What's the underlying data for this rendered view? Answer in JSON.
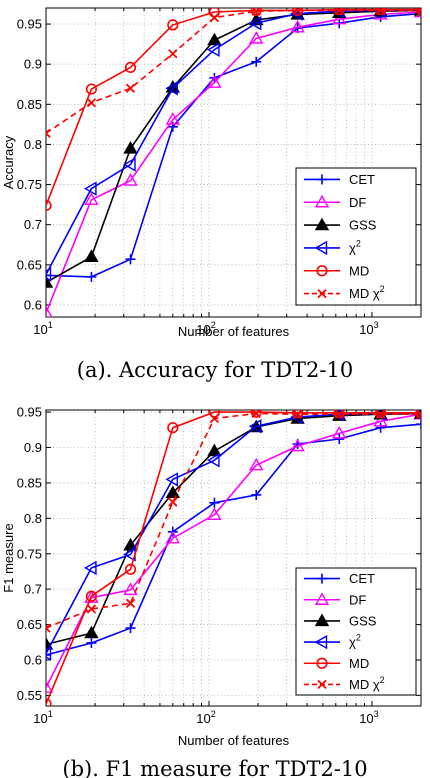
{
  "chart_data": [
    {
      "type": "line",
      "caption": "(a). Accuracy for TDT2-10",
      "xlabel": "Number of features",
      "ylabel": "Accuracy",
      "xscale": "log",
      "xlim": [
        10,
        2000
      ],
      "ylim": [
        0.585,
        0.97
      ],
      "grid": true,
      "legend_position": "lower-right",
      "xticks": [
        {
          "label": "10",
          "exp": "1",
          "value": 10
        },
        {
          "label": "10",
          "exp": "2",
          "value": 100
        },
        {
          "label": "10",
          "exp": "3",
          "value": 1000
        }
      ],
      "yticks": [
        {
          "label": "0.6",
          "value": 0.6
        },
        {
          "label": "0.65",
          "value": 0.65
        },
        {
          "label": "0.7",
          "value": 0.7
        },
        {
          "label": "0.75",
          "value": 0.75
        },
        {
          "label": "0.8",
          "value": 0.8
        },
        {
          "label": "0.85",
          "value": 0.85
        },
        {
          "label": "0.9",
          "value": 0.9
        },
        {
          "label": "0.95",
          "value": 0.95
        }
      ],
      "series": [
        {
          "name": "CET",
          "sup": "",
          "color": "#0000ff",
          "marker": "plus",
          "dash": false,
          "x": [
            10,
            19,
            33,
            60,
            108,
            195,
            350,
            630,
            1130,
            2000
          ],
          "y": [
            0.637,
            0.635,
            0.657,
            0.822,
            0.883,
            0.903,
            0.945,
            0.951,
            0.959,
            0.963
          ]
        },
        {
          "name": "DF",
          "sup": "",
          "color": "#ff00ff",
          "marker": "triangle-up",
          "dash": false,
          "x": [
            10,
            19,
            33,
            60,
            108,
            195,
            350,
            630,
            1130,
            2000
          ],
          "y": [
            0.59,
            0.731,
            0.755,
            0.831,
            0.877,
            0.932,
            0.946,
            0.956,
            0.962,
            0.965
          ]
        },
        {
          "name": "GSS",
          "sup": "",
          "color": "#000000",
          "marker": "triangle-up-filled",
          "dash": false,
          "x": [
            10,
            19,
            33,
            60,
            108,
            195,
            350,
            630,
            1130,
            2000
          ],
          "y": [
            0.628,
            0.66,
            0.795,
            0.871,
            0.93,
            0.955,
            0.962,
            0.964,
            0.966,
            0.967
          ]
        },
        {
          "name": "χ",
          "sup": "2",
          "color": "#0000ff",
          "marker": "triangle-left",
          "dash": false,
          "x": [
            10,
            19,
            33,
            60,
            108,
            195,
            350,
            630,
            1130,
            2000
          ],
          "y": [
            0.638,
            0.745,
            0.775,
            0.87,
            0.918,
            0.951,
            0.963,
            0.966,
            0.967,
            0.968
          ]
        },
        {
          "name": "MD",
          "sup": "",
          "color": "#ff0000",
          "marker": "circle",
          "dash": false,
          "x": [
            10,
            19,
            33,
            60,
            108,
            195,
            350,
            630,
            1130,
            2000
          ],
          "y": [
            0.724,
            0.869,
            0.896,
            0.949,
            0.965,
            0.967,
            0.967,
            0.968,
            0.968,
            0.968
          ]
        },
        {
          "name": "MD χ",
          "sup": "2",
          "color": "#ff0000",
          "marker": "x",
          "dash": true,
          "x": [
            10,
            19,
            33,
            60,
            108,
            195,
            350,
            630,
            1130,
            2000
          ],
          "y": [
            0.814,
            0.852,
            0.87,
            0.913,
            0.958,
            0.966,
            0.967,
            0.967,
            0.967,
            0.967
          ]
        }
      ]
    },
    {
      "type": "line",
      "caption": "(b). F1 measure for TDT2-10",
      "xlabel": "Number of features",
      "ylabel": "F1 measure",
      "xscale": "log",
      "xlim": [
        10,
        2000
      ],
      "ylim": [
        0.535,
        0.953
      ],
      "grid": true,
      "legend_position": "lower-right",
      "xticks": [
        {
          "label": "10",
          "exp": "1",
          "value": 10
        },
        {
          "label": "10",
          "exp": "2",
          "value": 100
        },
        {
          "label": "10",
          "exp": "3",
          "value": 1000
        }
      ],
      "yticks": [
        {
          "label": "0.55",
          "value": 0.55
        },
        {
          "label": "0.6",
          "value": 0.6
        },
        {
          "label": "0.65",
          "value": 0.65
        },
        {
          "label": "0.7",
          "value": 0.7
        },
        {
          "label": "0.75",
          "value": 0.75
        },
        {
          "label": "0.8",
          "value": 0.8
        },
        {
          "label": "0.85",
          "value": 0.85
        },
        {
          "label": "0.9",
          "value": 0.9
        },
        {
          "label": "0.95",
          "value": 0.95
        }
      ],
      "series": [
        {
          "name": "CET",
          "sup": "",
          "color": "#0000ff",
          "marker": "plus",
          "dash": false,
          "x": [
            10,
            19,
            33,
            60,
            108,
            195,
            350,
            630,
            1130,
            2000
          ],
          "y": [
            0.607,
            0.624,
            0.645,
            0.781,
            0.822,
            0.833,
            0.905,
            0.912,
            0.928,
            0.933
          ]
        },
        {
          "name": "DF",
          "sup": "",
          "color": "#ff00ff",
          "marker": "triangle-up",
          "dash": false,
          "x": [
            10,
            19,
            33,
            60,
            108,
            195,
            350,
            630,
            1130,
            2000
          ],
          "y": [
            0.561,
            0.688,
            0.699,
            0.772,
            0.805,
            0.875,
            0.902,
            0.92,
            0.937,
            0.947
          ]
        },
        {
          "name": "GSS",
          "sup": "",
          "color": "#000000",
          "marker": "triangle-up-filled",
          "dash": false,
          "x": [
            10,
            19,
            33,
            60,
            108,
            195,
            350,
            630,
            1130,
            2000
          ],
          "y": [
            0.622,
            0.638,
            0.762,
            0.836,
            0.895,
            0.929,
            0.941,
            0.945,
            0.947,
            0.948
          ]
        },
        {
          "name": "χ",
          "sup": "2",
          "color": "#0000ff",
          "marker": "triangle-left",
          "dash": false,
          "x": [
            10,
            19,
            33,
            60,
            108,
            195,
            350,
            630,
            1130,
            2000
          ],
          "y": [
            0.609,
            0.73,
            0.749,
            0.855,
            0.882,
            0.93,
            0.943,
            0.947,
            0.948,
            0.949
          ]
        },
        {
          "name": "MD",
          "sup": "",
          "color": "#ff0000",
          "marker": "circle",
          "dash": false,
          "x": [
            10,
            19,
            33,
            60,
            108,
            195,
            350,
            630,
            1130,
            2000
          ],
          "y": [
            0.538,
            0.69,
            0.728,
            0.928,
            0.95,
            0.95,
            0.949,
            0.949,
            0.949,
            0.949
          ]
        },
        {
          "name": "MD χ",
          "sup": "2",
          "color": "#ff0000",
          "marker": "x",
          "dash": true,
          "x": [
            10,
            19,
            33,
            60,
            108,
            195,
            350,
            630,
            1130,
            2000
          ],
          "y": [
            0.645,
            0.672,
            0.68,
            0.823,
            0.941,
            0.948,
            0.947,
            0.947,
            0.947,
            0.947
          ]
        }
      ]
    }
  ]
}
